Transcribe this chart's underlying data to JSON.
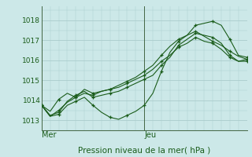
{
  "xlabel": "Pression niveau de la mer( hPa )",
  "bg_color": "#cce8e8",
  "grid_color": "#aacccc",
  "line_color": "#1a5c1a",
  "ylim": [
    1012.5,
    1018.7
  ],
  "xlim": [
    0,
    48
  ],
  "yticks": [
    1013,
    1014,
    1015,
    1016,
    1017,
    1018
  ],
  "ytick_minor_step": 0.5,
  "xtick_minor_step": 2,
  "mer_x": 0,
  "jeu_x": 24,
  "series": [
    [
      1013.75,
      1013.2,
      1013.5,
      1013.9,
      1014.15,
      1014.35,
      1014.25,
      1014.45,
      1014.55,
      1014.75,
      1014.95,
      1015.15,
      1015.45,
      1015.75,
      1016.25,
      1016.7,
      1017.05,
      1017.25,
      1017.45,
      1017.2,
      1016.95,
      1016.75,
      1016.45,
      1016.2,
      1016.05
    ],
    [
      1013.75,
      1013.2,
      1013.3,
      1013.75,
      1013.95,
      1014.15,
      1013.75,
      1013.4,
      1013.15,
      1013.05,
      1013.25,
      1013.45,
      1013.75,
      1014.35,
      1015.45,
      1016.4,
      1016.95,
      1017.25,
      1017.75,
      1017.85,
      1017.95,
      1017.75,
      1017.05,
      1016.25,
      1016.15
    ],
    [
      1013.75,
      1013.25,
      1013.4,
      1013.95,
      1014.25,
      1014.45,
      1014.15,
      1014.25,
      1014.35,
      1014.45,
      1014.65,
      1014.85,
      1015.05,
      1015.25,
      1015.75,
      1016.15,
      1016.75,
      1017.05,
      1017.35,
      1017.25,
      1017.15,
      1016.85,
      1016.25,
      1015.95,
      1016.05
    ],
    [
      1013.75,
      1013.45,
      1014.05,
      1014.35,
      1014.15,
      1014.55,
      1014.35,
      1014.45,
      1014.55,
      1014.65,
      1014.85,
      1015.05,
      1015.25,
      1015.55,
      1015.95,
      1016.25,
      1016.65,
      1016.85,
      1017.15,
      1016.95,
      1016.85,
      1016.55,
      1016.15,
      1015.95,
      1015.95
    ]
  ]
}
